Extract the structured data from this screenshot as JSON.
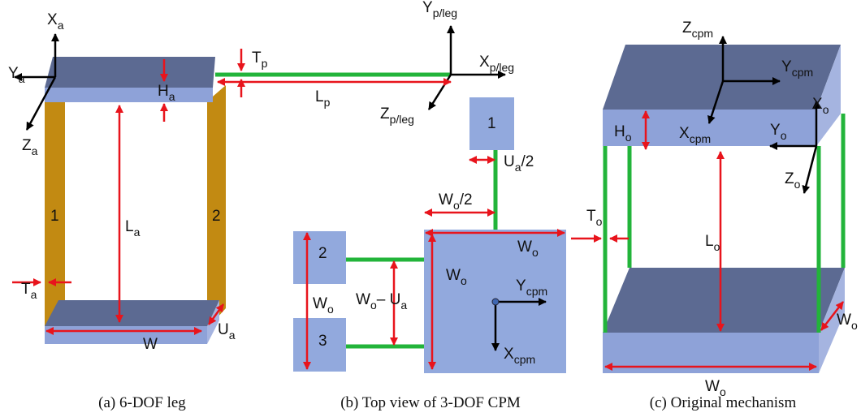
{
  "panels": [
    {
      "caption": "(a) 6-DOF leg",
      "labels": [
        [
          {
            "text": "X",
            "sub": "a"
          }
        ],
        [
          {
            "text": "Y",
            "sub": "a"
          }
        ],
        [
          {
            "text": "Z",
            "sub": "a"
          }
        ],
        [
          {
            "text": "H",
            "sub": "a"
          }
        ],
        [
          {
            "text": "L",
            "sub": "a"
          }
        ],
        [
          {
            "text": "1"
          }
        ],
        [
          {
            "text": "2"
          }
        ],
        [
          {
            "text": "T",
            "sub": "a"
          }
        ],
        [
          {
            "text": "W"
          }
        ],
        [
          {
            "text": "U",
            "sub": "a"
          }
        ],
        [
          {
            "text": "T",
            "sub": "p"
          }
        ],
        [
          {
            "text": "L",
            "sub": "p"
          }
        ],
        [
          {
            "text": "Y",
            "sub": "p/leg"
          }
        ],
        [
          {
            "text": "X",
            "sub": "p/leg"
          }
        ],
        [
          {
            "text": "Z",
            "sub": "p/leg"
          }
        ]
      ]
    },
    {
      "caption": "(b) Top view of 3-DOF CPM",
      "labels": [
        [
          {
            "text": "1"
          }
        ],
        [
          {
            "text": "U",
            "sub": "a"
          },
          {
            "text": "/2"
          }
        ],
        [
          {
            "text": "W",
            "sub": "o"
          },
          {
            "text": "/2"
          }
        ],
        [
          {
            "text": "W",
            "sub": "o"
          }
        ],
        [
          {
            "text": "W",
            "sub": "o"
          }
        ],
        [
          {
            "text": "Y",
            "sub": "cpm"
          }
        ],
        [
          {
            "text": "X",
            "sub": "cpm"
          }
        ],
        [
          {
            "text": "2"
          }
        ],
        [
          {
            "text": "3"
          }
        ],
        [
          {
            "text": "W",
            "sub": "o"
          }
        ],
        [
          {
            "text": "W",
            "sub": "o"
          },
          {
            "text": "– U",
            "sub": "a"
          }
        ]
      ]
    },
    {
      "caption": "(c) Original mechanism",
      "labels": [
        [
          {
            "text": "Z",
            "sub": "cpm"
          }
        ],
        [
          {
            "text": "Y",
            "sub": "cpm"
          }
        ],
        [
          {
            "text": "X",
            "sub": "cpm"
          }
        ],
        [
          {
            "text": "X",
            "sub": "o"
          }
        ],
        [
          {
            "text": "Y",
            "sub": "o"
          }
        ],
        [
          {
            "text": "Z",
            "sub": "o"
          }
        ],
        [
          {
            "text": "H",
            "sub": "o"
          }
        ],
        [
          {
            "text": "T",
            "sub": "o"
          }
        ],
        [
          {
            "text": "L",
            "sub": "o"
          }
        ],
        [
          {
            "text": "W",
            "sub": "o"
          }
        ],
        [
          {
            "text": "W",
            "sub": "o"
          }
        ]
      ]
    }
  ]
}
